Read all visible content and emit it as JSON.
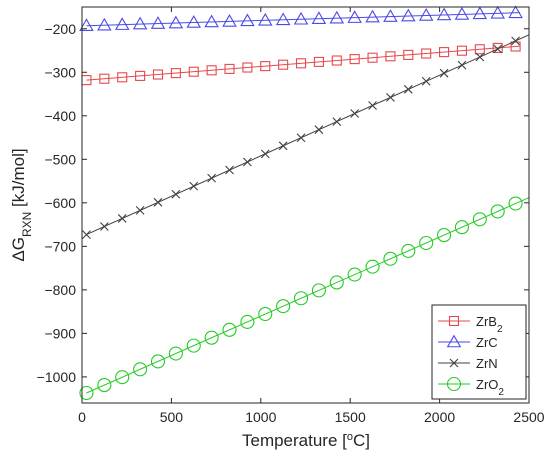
{
  "chart_data": {
    "type": "line",
    "title": "",
    "xlabel": "Temperature [°C]",
    "ylabel": "ΔG_RXN [kJ/mol]",
    "xlim": [
      0,
      2500
    ],
    "ylim": [
      -1060,
      -150
    ],
    "xticks": [
      0,
      500,
      1000,
      1500,
      2000,
      2500
    ],
    "yticks": [
      -1000,
      -900,
      -800,
      -700,
      -600,
      -500,
      -400,
      -300,
      -200
    ],
    "grid": false,
    "legend_position": "bottom-right",
    "series": [
      {
        "name": "ZrB2",
        "name_base": "ZrB",
        "name_sub": "2",
        "color": "#e8474b",
        "marker": "square",
        "x": [
          25,
          2450
        ],
        "y": [
          -318,
          -240
        ]
      },
      {
        "name": "ZrC",
        "name_base": "ZrC",
        "name_sub": "",
        "color": "#4a4ae6",
        "marker": "triangle",
        "x": [
          25,
          2450
        ],
        "y": [
          -193,
          -163
        ]
      },
      {
        "name": "ZrN",
        "name_base": "ZrN",
        "name_sub": "",
        "color": "#404040",
        "marker": "x",
        "x": [
          25,
          2500
        ],
        "y": [
          -673,
          -214
        ]
      },
      {
        "name": "ZrO2",
        "name_base": "ZrO",
        "name_sub": "2",
        "color": "#22cc22",
        "marker": "circle",
        "x": [
          25,
          2500
        ],
        "y": [
          -1037,
          -588
        ]
      }
    ]
  }
}
